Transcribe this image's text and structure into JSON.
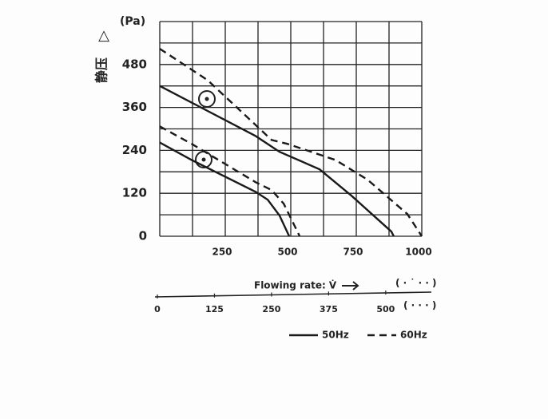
{
  "chart_data": {
    "type": "line",
    "ylabel": "静压",
    "ylabel_symbol": "△",
    "yunit": "(Pa)",
    "xlabel": "Flowing rate: V̇",
    "xunit": "( · ˙ · · )",
    "x2unit": "( · · · )",
    "xlim": [
      0,
      1000
    ],
    "xticks": [
      250,
      500,
      750,
      1000
    ],
    "xminor": [
      0,
      125,
      375,
      625,
      875
    ],
    "ylim": [
      0,
      600
    ],
    "yticks": [
      0,
      120,
      240,
      360,
      480
    ],
    "yminor": [
      60,
      180,
      300,
      420,
      540,
      600
    ],
    "x2lim": [
      0,
      600
    ],
    "x2ticks": [
      0,
      125,
      250,
      375,
      500
    ],
    "grid": true,
    "legend": "bottom-right",
    "series": [
      {
        "name": "50Hz",
        "dash": "solid",
        "color": "#1a1a1a",
        "curves": [
          {
            "x": [
              0,
              366,
              457,
              610,
              732,
              884,
              893
            ],
            "values": [
              420,
              280,
              236,
              187,
              113,
              13,
              0
            ]
          },
          {
            "x": [
              0,
              122,
              366,
              412,
              457,
              494
            ],
            "values": [
              262,
              213,
              124,
              102,
              58,
              0
            ]
          }
        ]
      },
      {
        "name": "60Hz",
        "dash": "dashed",
        "color": "#1a1a1a",
        "curves": [
          {
            "x": [
              0,
              183,
              427,
              488,
              671,
              793,
              945,
              1000
            ],
            "values": [
              524,
              436,
              269,
              258,
              213,
              158,
              62,
              0
            ]
          },
          {
            "x": [
              0,
              122,
              366,
              427,
              473,
              534
            ],
            "values": [
              307,
              258,
              151,
              129,
              91,
              0
            ]
          }
        ]
      }
    ]
  }
}
